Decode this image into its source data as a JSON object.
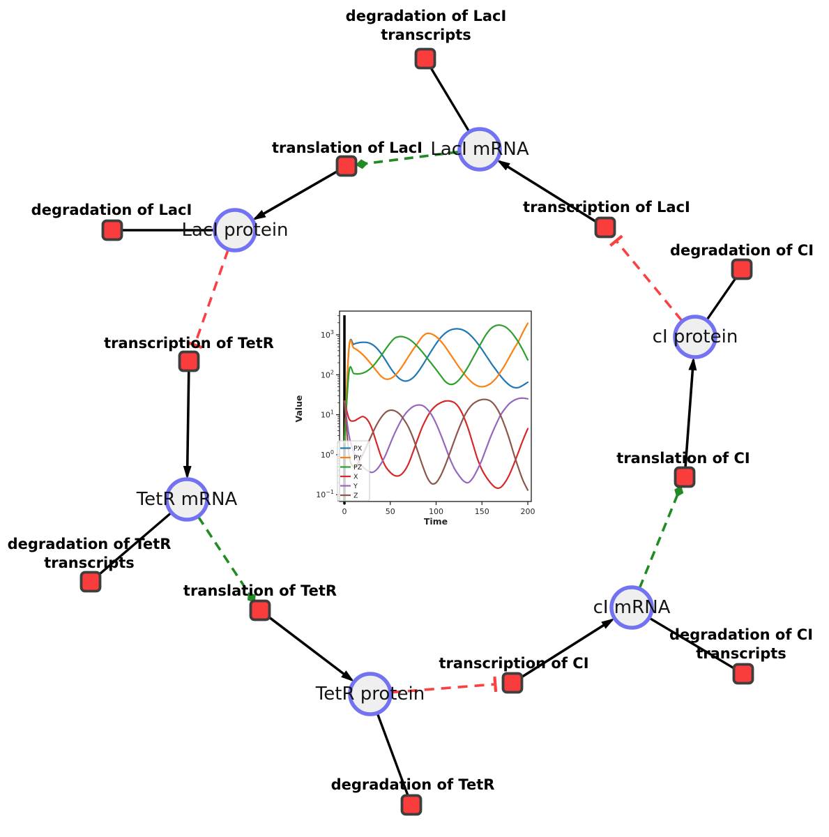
{
  "diagram": {
    "colors": {
      "species_fill": "#efefef",
      "species_stroke": "#7272f2",
      "reaction_fill": "#f93c3c",
      "reaction_stroke": "#3e3e3e",
      "product_edge": "#000000",
      "reactant_edge": "#000000",
      "modifier_edge": "#1f8b22",
      "inhibition_edge": "#f94141",
      "background": "#ffffff"
    },
    "species": {
      "lacI_mRNA": {
        "label": "LacI mRNA"
      },
      "lacI_protein": {
        "label": "LacI protein"
      },
      "tetR_mRNA": {
        "label": "TetR mRNA"
      },
      "tetR_protein": {
        "label": "TetR protein"
      },
      "cI_mRNA": {
        "label": "cI mRNA"
      },
      "cI_protein": {
        "label": "cI protein"
      }
    },
    "reactions": {
      "deg_lacI_tx": {
        "label": "degradation of LacI transcripts"
      },
      "translation_lacI": {
        "label": "translation of LacI"
      },
      "deg_lacI": {
        "label": "degradation of LacI"
      },
      "transcription_lacI": {
        "label": "transcription of LacI"
      },
      "deg_cI": {
        "label": "degradation of CI"
      },
      "transcription_tetR": {
        "label": "transcription of TetR"
      },
      "deg_tetR_tx": {
        "label": "degradation of TetR transcripts"
      },
      "translation_tetR": {
        "label": "translation of TetR"
      },
      "deg_tetR": {
        "label": "degradation of TetR"
      },
      "transcription_cI": {
        "label": "transcription of CI"
      },
      "deg_cI_tx": {
        "label": "degradation of CI transcripts"
      },
      "translation_cI": {
        "label": "translation of CI"
      }
    }
  },
  "chart_data": {
    "type": "line",
    "title": "",
    "xlabel": "Time",
    "ylabel": "Value",
    "y_scale": "log",
    "grid": false,
    "legend_position": "lower left",
    "x_ticks": [
      0,
      50,
      100,
      150,
      200
    ],
    "y_tick_exponents": [
      3,
      2,
      1,
      0,
      -1
    ],
    "xlim": [
      -5.3,
      203.8
    ],
    "ylim_log10": [
      -1.17,
      3.59
    ],
    "vline_x": 0,
    "x": [
      0,
      5,
      10,
      15,
      20,
      25,
      30,
      35,
      40,
      45,
      50,
      55,
      60,
      65,
      70,
      75,
      80,
      85,
      90,
      95,
      100,
      105,
      110,
      115,
      120,
      125,
      130,
      135,
      140,
      145,
      150,
      155,
      160,
      165,
      170,
      175,
      180,
      185,
      190,
      195,
      200
    ],
    "series": [
      {
        "name": "PX",
        "color": "#1f77b4",
        "values": [
          2,
          480,
          580,
          630,
          650,
          640,
          580,
          470,
          340,
          230,
          150,
          105,
          80,
          70,
          72,
          85,
          115,
          170,
          260,
          400,
          600,
          850,
          1100,
          1300,
          1400,
          1400,
          1300,
          1100,
          850,
          620,
          430,
          290,
          195,
          135,
          95,
          70,
          55,
          48,
          48,
          55,
          65
        ]
      },
      {
        "name": "PY",
        "color": "#ff7f0e",
        "values": [
          2,
          490,
          470,
          400,
          320,
          240,
          175,
          125,
          92,
          78,
          80,
          95,
          130,
          190,
          290,
          430,
          620,
          900,
          1080,
          1050,
          900,
          700,
          500,
          340,
          230,
          155,
          110,
          80,
          62,
          53,
          50,
          53,
          62,
          80,
          115,
          175,
          280,
          450,
          700,
          1200,
          1950
        ]
      },
      {
        "name": "PZ",
        "color": "#2ca02c",
        "values": [
          2,
          120,
          108,
          105,
          110,
          125,
          155,
          210,
          300,
          440,
          630,
          830,
          900,
          880,
          790,
          650,
          500,
          370,
          265,
          190,
          135,
          95,
          68,
          58,
          60,
          75,
          105,
          160,
          260,
          420,
          680,
          1050,
          1450,
          1700,
          1740,
          1600,
          1300,
          950,
          640,
          400,
          235
        ]
      },
      {
        "name": "X",
        "color": "#d62728",
        "values": [
          22,
          8,
          7,
          8,
          9,
          7.5,
          4.5,
          2,
          0.9,
          0.5,
          0.36,
          0.3,
          0.3,
          0.38,
          0.6,
          1.2,
          2.5,
          5,
          8.5,
          13,
          17,
          20,
          22,
          22,
          20,
          15,
          9,
          4.5,
          1.9,
          0.8,
          0.42,
          0.27,
          0.19,
          0.15,
          0.15,
          0.2,
          0.32,
          0.6,
          1.2,
          2.4,
          4.5
        ]
      },
      {
        "name": "Y",
        "color": "#9467bd",
        "values": [
          22,
          3,
          1.2,
          0.7,
          0.5,
          0.4,
          0.36,
          0.42,
          0.6,
          1,
          1.9,
          3.5,
          6,
          9.5,
          13,
          16,
          17.5,
          17,
          14,
          10,
          6,
          3.2,
          1.6,
          0.8,
          0.45,
          0.3,
          0.22,
          0.2,
          0.26,
          0.42,
          0.75,
          1.5,
          3,
          5.5,
          9.5,
          14,
          19,
          23,
          25.5,
          26,
          25
        ]
      },
      {
        "name": "Z",
        "color": "#8c564b",
        "values": [
          22,
          1,
          0.5,
          0.62,
          1,
          1.8,
          3.2,
          5.5,
          8.5,
          11.5,
          13,
          12.5,
          10.5,
          7.5,
          4.8,
          2.6,
          1.2,
          0.55,
          0.28,
          0.19,
          0.2,
          0.3,
          0.55,
          1.1,
          2.3,
          4.6,
          8.5,
          13.5,
          18.5,
          22,
          24,
          24,
          21.5,
          16,
          10,
          5.2,
          2.4,
          1,
          0.45,
          0.22,
          0.13
        ]
      }
    ]
  }
}
